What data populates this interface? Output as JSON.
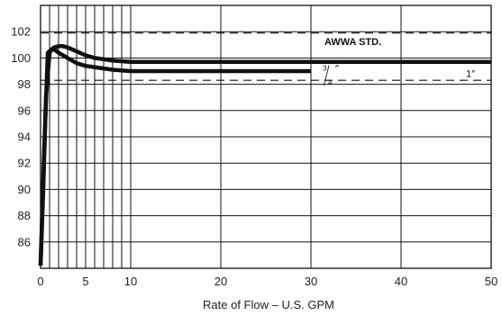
{
  "chart_data": {
    "type": "line",
    "title": "",
    "xlabel": "Rate of Flow – U.S. GPM",
    "ylabel": "",
    "xlim": [
      0,
      50
    ],
    "ylim": [
      84,
      104
    ],
    "x_ticks": [
      0,
      5,
      10,
      20,
      30,
      40,
      50
    ],
    "y_ticks": [
      86,
      88,
      90,
      92,
      94,
      96,
      98,
      100,
      102
    ],
    "grid": true,
    "reference_lines": [
      {
        "y": 101.9,
        "style": "dashed"
      },
      {
        "y": 98.3,
        "style": "dashed"
      }
    ],
    "series": [
      {
        "name": "1″",
        "x": [
          0,
          0.35,
          0.8,
          1.5,
          2.0,
          2.5,
          3,
          4,
          5,
          6,
          8,
          10,
          20,
          30,
          40,
          50
        ],
        "y": [
          84.2,
          92.0,
          100.4,
          100.8,
          100.9,
          100.9,
          100.8,
          100.5,
          100.2,
          100.0,
          99.8,
          99.7,
          99.7,
          99.7,
          99.7,
          99.7
        ]
      },
      {
        "name": "3/4″",
        "x": [
          0,
          0.3,
          0.6,
          1.0,
          1.3,
          1.6,
          2,
          3,
          4,
          5,
          6,
          8,
          10,
          20,
          30
        ],
        "y": [
          84.2,
          90.0,
          97.0,
          100.4,
          100.7,
          100.6,
          100.4,
          100.0,
          99.6,
          99.4,
          99.3,
          99.1,
          99.0,
          99.0,
          99.0
        ]
      }
    ],
    "annotations": {
      "awwa": "AWWA STD.",
      "three_quarter_num": "3",
      "three_quarter_den": "4",
      "three_quarter_mark": "″",
      "one_inch": "1″"
    }
  }
}
